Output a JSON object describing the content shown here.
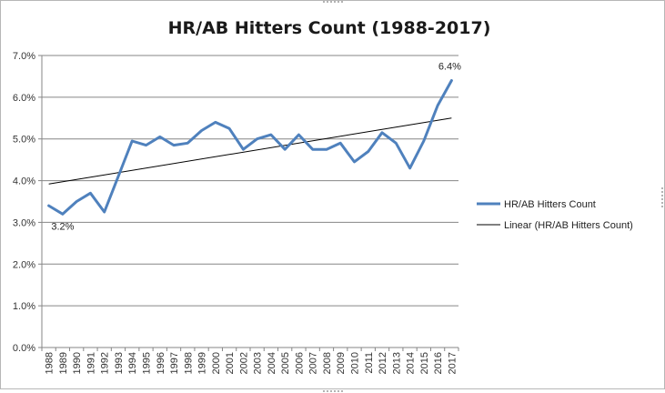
{
  "chart_data": {
    "type": "line",
    "title": "HR/AB Hitters Count (1988-2017)",
    "xlabel": "",
    "ylabel": "",
    "ylim": [
      0,
      7
    ],
    "y_tick_values": [
      0,
      1,
      2,
      3,
      4,
      5,
      6,
      7
    ],
    "y_tick_labels": [
      "0.0%",
      "1.0%",
      "2.0%",
      "3.0%",
      "4.0%",
      "5.0%",
      "6.0%",
      "7.0%"
    ],
    "grid": "horizontal",
    "legend_position": "right",
    "categories": [
      "1988",
      "1989",
      "1990",
      "1991",
      "1992",
      "1993",
      "1994",
      "1995",
      "1996",
      "1997",
      "1998",
      "1999",
      "2000",
      "2001",
      "2002",
      "2003",
      "2004",
      "2005",
      "2006",
      "2007",
      "2008",
      "2009",
      "2010",
      "2011",
      "2012",
      "2013",
      "2014",
      "2015",
      "2016",
      "2017"
    ],
    "series": [
      {
        "name": "HR/AB Hitters Count",
        "color": "#4f81bd",
        "values": [
          3.4,
          3.2,
          3.5,
          3.7,
          3.25,
          4.1,
          4.95,
          4.85,
          5.05,
          4.85,
          4.9,
          5.2,
          5.4,
          5.25,
          4.75,
          5.0,
          5.1,
          4.75,
          5.1,
          4.75,
          4.75,
          4.9,
          4.45,
          4.7,
          5.15,
          4.9,
          4.3,
          4.95,
          5.8,
          6.4
        ]
      },
      {
        "name": "Linear (HR/AB Hitters Count)",
        "color": "#000000",
        "trend_start": 3.92,
        "trend_end": 5.5
      }
    ],
    "data_labels": [
      {
        "category": "1989",
        "text": "3.2%"
      },
      {
        "category": "2017",
        "text": "6.4%"
      }
    ]
  }
}
